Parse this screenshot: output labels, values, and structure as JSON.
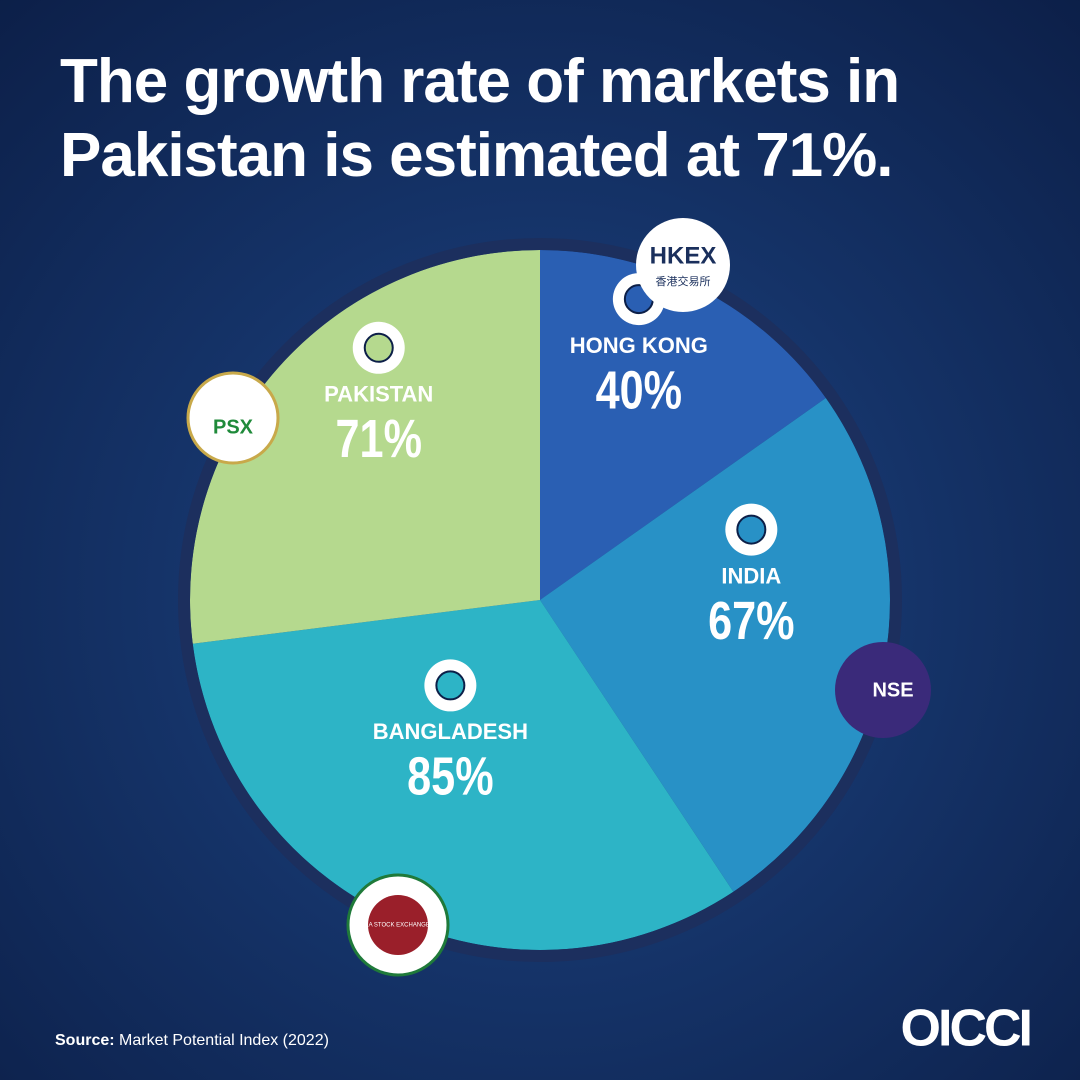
{
  "chart_data": {
    "type": "pie",
    "title": "The growth rate of markets in Pakistan is estimated at 71%.",
    "categories": [
      "HONG KONG",
      "INDIA",
      "BANGLADESH",
      "PAKISTAN"
    ],
    "values": [
      40,
      67,
      85,
      71
    ],
    "value_labels": [
      "40%",
      "67%",
      "85%",
      "71%"
    ],
    "colors": [
      "#2a5fb3",
      "#2891c6",
      "#2db4c6",
      "#b5d98e"
    ],
    "source_label": "Source:",
    "source": "Market Potential Index (2022)"
  },
  "logos": {
    "hkex": "HKEX",
    "hkex_sub": "香港交易所",
    "psx": "PSX",
    "nse": "NSE",
    "dse": "DHAKA STOCK EXCHANGE LTD.",
    "brand": "OICCI"
  }
}
